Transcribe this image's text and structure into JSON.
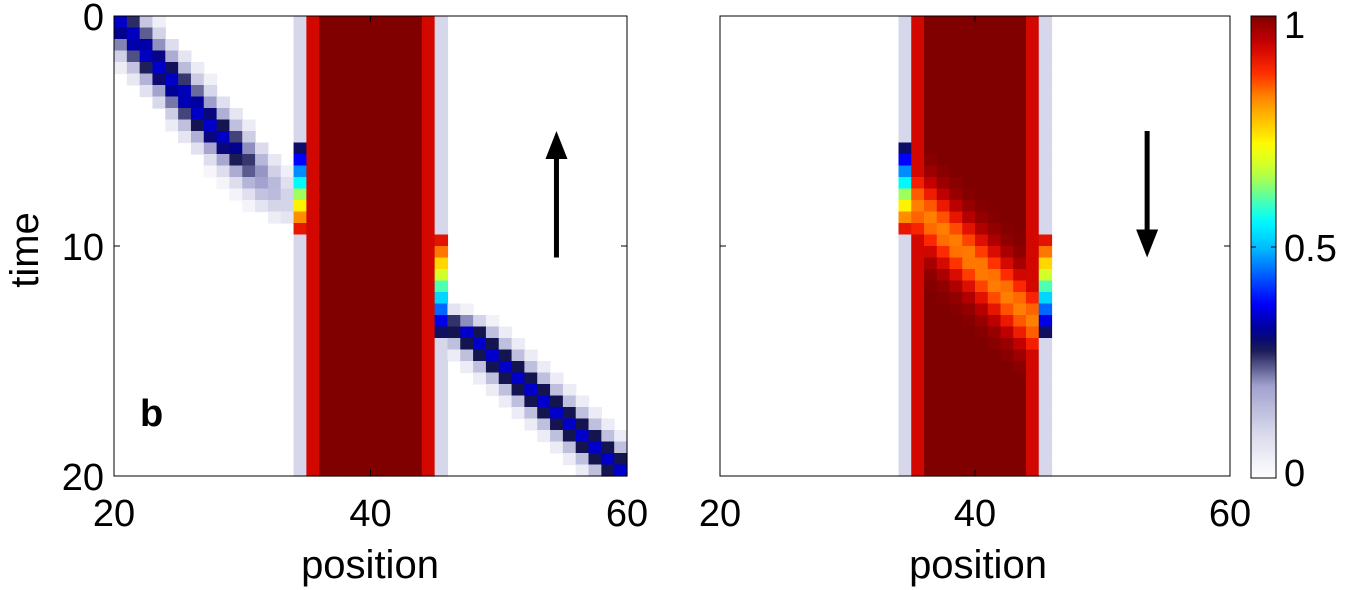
{
  "chart_data": [
    {
      "type": "heatmap",
      "panel_label": "b",
      "xlabel": "position",
      "ylabel": "time",
      "xlim": [
        20,
        60
      ],
      "ylim": [
        0,
        20
      ],
      "y_inverted": true,
      "xticks": [
        20,
        40,
        60
      ],
      "yticks": [
        0,
        10,
        20
      ],
      "xtick_labels": [
        "20",
        "40",
        "60"
      ],
      "ytick_labels": [
        "0",
        "10",
        "20"
      ],
      "arrow_direction": "up",
      "arrow_x": 54.5,
      "arrow_y_range": [
        5,
        10.5
      ],
      "barrier": {
        "x_start": 35,
        "x_end": 45,
        "value": 1.0
      },
      "walls": [
        {
          "x": 34.5,
          "value": 0.1
        },
        {
          "x": 45.5,
          "value": 0.1
        }
      ],
      "packets": [
        {
          "x_start": 20,
          "t_start": 0,
          "x_end": 35,
          "t_end": 9.5,
          "value": 0.35,
          "fade": "in_then_hit"
        },
        {
          "x_start": 45,
          "t_start": 12.5,
          "x_end": 60,
          "t_end": 20,
          "value": 0.35,
          "fade": "out"
        }
      ],
      "edge_transients": [
        {
          "x": 34.5,
          "t_start": 5.5,
          "t_end": 9.5,
          "value_start": 0.25,
          "value_end": 0.95
        },
        {
          "x": 45.5,
          "t_start": 9.5,
          "t_end": 14,
          "value_start": 0.95,
          "value_end": 0.25
        }
      ]
    },
    {
      "type": "heatmap",
      "panel_label": "",
      "xlabel": "position",
      "ylabel": "",
      "xlim": [
        20,
        60
      ],
      "ylim": [
        0,
        20
      ],
      "y_inverted": true,
      "xticks": [
        20,
        40,
        60
      ],
      "yticks": [
        0,
        10,
        20
      ],
      "xtick_labels": [
        "20",
        "40",
        "60"
      ],
      "ytick_labels": [],
      "arrow_direction": "down",
      "arrow_x": 53.5,
      "arrow_y_range": [
        5,
        10.5
      ],
      "barrier": {
        "x_start": 35,
        "x_end": 45,
        "value": 1.0
      },
      "walls": [
        {
          "x": 34.5,
          "value": 0.1
        },
        {
          "x": 45.5,
          "value": 0.1
        }
      ],
      "internal_band": {
        "x_start": 35,
        "t_start": 5.5,
        "x_end": 45,
        "t_end": 13.5,
        "value": 0.85
      },
      "edge_transients": [
        {
          "x": 34.5,
          "t_start": 5.5,
          "t_end": 9.5,
          "value_start": 0.25,
          "value_end": 0.95
        },
        {
          "x": 45.5,
          "t_start": 9.5,
          "t_end": 14,
          "value_start": 0.95,
          "value_end": 0.25
        }
      ]
    }
  ],
  "colorbar": {
    "min": 0,
    "max": 1,
    "tick_values": [
      0,
      0.5,
      1
    ],
    "tick_labels": [
      "0",
      "0.5",
      "1"
    ],
    "colormap": "white-lavender-to-jet"
  }
}
